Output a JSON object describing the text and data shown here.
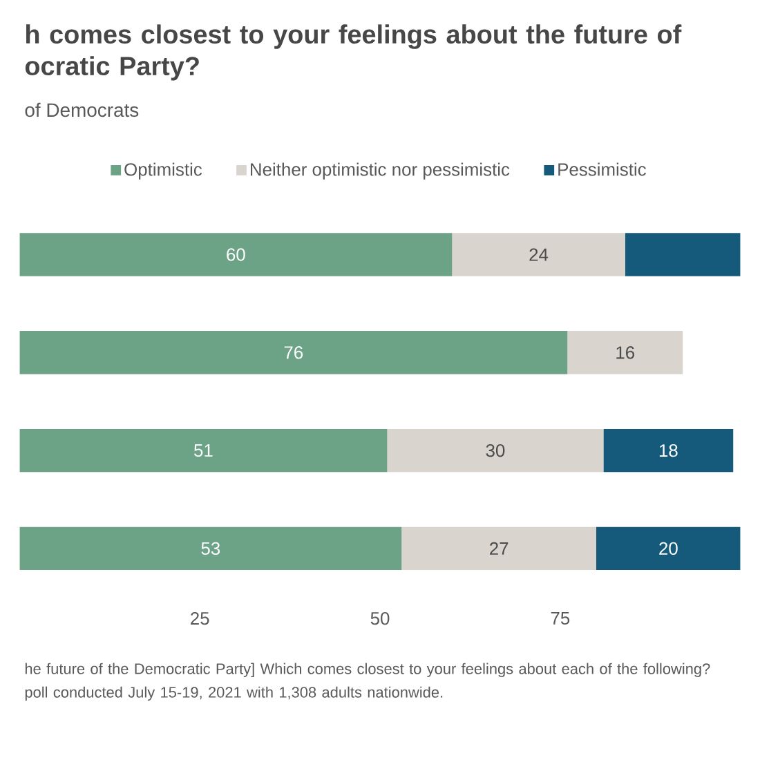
{
  "chart_data": {
    "type": "bar",
    "orientation": "horizontal",
    "stacked": true,
    "title": "h comes closest to your feelings about the future of ocratic Party?",
    "subtitle": "of Democrats",
    "categories": [
      null,
      null,
      null,
      null
    ],
    "series": [
      {
        "name": "Optimistic",
        "color": "#6ca386",
        "values": [
          60,
          76,
          51,
          53
        ],
        "value_labels": [
          "60",
          "76",
          "51",
          "53"
        ]
      },
      {
        "name": "Neither optimistic nor pessimistic",
        "color": "#d9d4cd",
        "values": [
          24,
          16,
          30,
          27
        ],
        "value_labels": [
          "24",
          "16",
          "30",
          "27"
        ]
      },
      {
        "name": "Pessimistic",
        "color": "#165a7b",
        "values": [
          16,
          null,
          18,
          20
        ],
        "value_labels": [
          null,
          null,
          "18",
          "20"
        ]
      }
    ],
    "xlim": [
      0,
      100
    ],
    "xticks": [
      25,
      50,
      75
    ],
    "legend": "top",
    "grid": false,
    "annotations": [
      "he future of the Democratic Party] Which comes closest to your feelings about each of the following?",
      "poll conducted July 15-19, 2021 with 1,308 adults nationwide."
    ]
  }
}
